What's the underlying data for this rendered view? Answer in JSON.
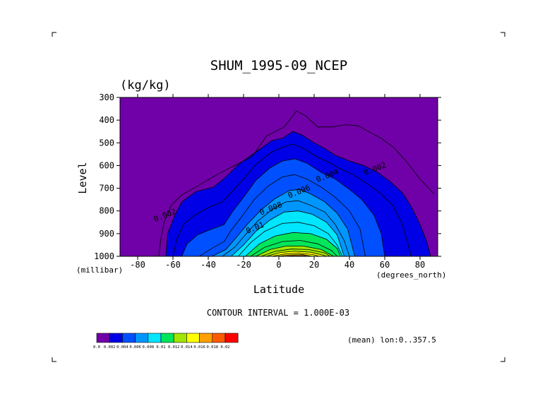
{
  "chart_data": {
    "type": "contour",
    "title": "SHUM_1995-09_NCEP",
    "units_label": "(kg/kg)",
    "xlabel": "Latitude",
    "ylabel": "Level",
    "x_units_label": "(degrees_north)",
    "y_units_label": "(millibar)",
    "xlim": [
      -90,
      90
    ],
    "ylim": [
      1000,
      300
    ],
    "x_ticks": [
      -80,
      -60,
      -40,
      -20,
      0,
      20,
      40,
      60,
      80
    ],
    "y_ticks": [
      300,
      400,
      500,
      600,
      700,
      800,
      900,
      1000
    ],
    "contour_interval_text": "CONTOUR INTERVAL = 1.000E-03",
    "annotation": "(mean) lon:0..357.5",
    "colorbar": {
      "colors": [
        "#7000a8",
        "#0000e6",
        "#0050ff",
        "#0096ff",
        "#00e6ff",
        "#00e65a",
        "#a0e600",
        "#ffff00",
        "#ffa000",
        "#ff5a00",
        "#ff0000"
      ],
      "labels": [
        "0.0",
        "0.002",
        "0.004",
        "0.006",
        "0.008",
        "0.01",
        "0.012",
        "0.014",
        "0.016",
        "0.018",
        "0.02"
      ]
    },
    "contour_labels": [
      {
        "text": "0.002",
        "lat": -64,
        "lev": 830
      },
      {
        "text": "0.002",
        "lat": 55,
        "lev": 625
      },
      {
        "text": "0.004",
        "lat": 28,
        "lev": 655
      },
      {
        "text": "0.006",
        "lat": 12,
        "lev": 725
      },
      {
        "text": "0.008",
        "lat": -4,
        "lev": 800
      },
      {
        "text": "0.01",
        "lat": -13,
        "lev": 885
      }
    ],
    "contours": [
      {
        "value": 0.001,
        "points": [
          [
            -68,
            1000
          ],
          [
            -67,
            930
          ],
          [
            -65,
            850
          ],
          [
            -61,
            775
          ],
          [
            -55,
            730
          ],
          [
            -45,
            685
          ],
          [
            -35,
            640
          ],
          [
            -25,
            600
          ],
          [
            -15,
            560
          ],
          [
            -7,
            470
          ],
          [
            3,
            430
          ],
          [
            10,
            360
          ],
          [
            15,
            380
          ],
          [
            22,
            430
          ],
          [
            30,
            430
          ],
          [
            38,
            420
          ],
          [
            45,
            425
          ],
          [
            52,
            455
          ],
          [
            58,
            480
          ],
          [
            65,
            520
          ],
          [
            72,
            580
          ],
          [
            80,
            660
          ],
          [
            88,
            725
          ]
        ]
      },
      {
        "value": 0.002,
        "points": [
          [
            -64,
            1000
          ],
          [
            -63,
            900
          ],
          [
            -59,
            820
          ],
          [
            -55,
            760
          ],
          [
            -47,
            715
          ],
          [
            -37,
            695
          ],
          [
            -30,
            650
          ],
          [
            -22,
            590
          ],
          [
            -12,
            535
          ],
          [
            -4,
            490
          ],
          [
            2,
            480
          ],
          [
            8,
            450
          ],
          [
            13,
            465
          ],
          [
            20,
            500
          ],
          [
            26,
            525
          ],
          [
            32,
            555
          ],
          [
            40,
            580
          ],
          [
            48,
            600
          ],
          [
            56,
            630
          ],
          [
            63,
            670
          ],
          [
            70,
            720
          ],
          [
            75,
            780
          ],
          [
            80,
            860
          ],
          [
            84,
            940
          ],
          [
            86,
            1000
          ]
        ]
      },
      {
        "value": 0.003,
        "points": [
          [
            -60,
            1000
          ],
          [
            -58,
            930
          ],
          [
            -54,
            860
          ],
          [
            -48,
            820
          ],
          [
            -40,
            785
          ],
          [
            -32,
            760
          ],
          [
            -26,
            710
          ],
          [
            -20,
            660
          ],
          [
            -13,
            595
          ],
          [
            -5,
            545
          ],
          [
            2,
            520
          ],
          [
            8,
            505
          ],
          [
            14,
            525
          ],
          [
            20,
            555
          ],
          [
            28,
            585
          ],
          [
            35,
            615
          ],
          [
            42,
            640
          ],
          [
            50,
            680
          ],
          [
            58,
            725
          ],
          [
            65,
            780
          ],
          [
            70,
            860
          ],
          [
            73,
            940
          ],
          [
            75,
            1000
          ]
        ]
      },
      {
        "value": 0.004,
        "points": [
          [
            -55,
            1000
          ],
          [
            -52,
            945
          ],
          [
            -46,
            905
          ],
          [
            -38,
            880
          ],
          [
            -31,
            860
          ],
          [
            -26,
            800
          ],
          [
            -20,
            740
          ],
          [
            -13,
            665
          ],
          [
            -5,
            610
          ],
          [
            2,
            580
          ],
          [
            9,
            570
          ],
          [
            16,
            590
          ],
          [
            24,
            630
          ],
          [
            32,
            660
          ],
          [
            40,
            705
          ],
          [
            47,
            750
          ],
          [
            54,
            820
          ],
          [
            58,
            900
          ],
          [
            60,
            1000
          ]
        ]
      },
      {
        "value": 0.005,
        "points": [
          [
            -45,
            1000
          ],
          [
            -38,
            965
          ],
          [
            -31,
            935
          ],
          [
            -27,
            885
          ],
          [
            -21,
            825
          ],
          [
            -14,
            750
          ],
          [
            -6,
            690
          ],
          [
            2,
            650
          ],
          [
            9,
            640
          ],
          [
            16,
            660
          ],
          [
            24,
            695
          ],
          [
            32,
            740
          ],
          [
            40,
            800
          ],
          [
            46,
            880
          ],
          [
            49,
            1000
          ]
        ]
      },
      {
        "value": 0.006,
        "points": [
          [
            -38,
            1000
          ],
          [
            -30,
            970
          ],
          [
            -25,
            925
          ],
          [
            -18,
            860
          ],
          [
            -10,
            795
          ],
          [
            -2,
            745
          ],
          [
            6,
            710
          ],
          [
            12,
            705
          ],
          [
            18,
            725
          ],
          [
            26,
            760
          ],
          [
            33,
            810
          ],
          [
            39,
            880
          ],
          [
            43,
            1000
          ]
        ]
      },
      {
        "value": 0.007,
        "points": [
          [
            -32,
            1000
          ],
          [
            -25,
            960
          ],
          [
            -19,
            905
          ],
          [
            -12,
            845
          ],
          [
            -4,
            795
          ],
          [
            4,
            760
          ],
          [
            11,
            755
          ],
          [
            18,
            775
          ],
          [
            26,
            805
          ],
          [
            32,
            860
          ],
          [
            37,
            930
          ],
          [
            40,
            1000
          ]
        ]
      },
      {
        "value": 0.008,
        "points": [
          [
            -27,
            1000
          ],
          [
            -20,
            950
          ],
          [
            -13,
            890
          ],
          [
            -5,
            840
          ],
          [
            3,
            805
          ],
          [
            11,
            800
          ],
          [
            19,
            815
          ],
          [
            27,
            850
          ],
          [
            33,
            905
          ],
          [
            37,
            1000
          ]
        ]
      },
      {
        "value": 0.009,
        "points": [
          [
            -23,
            1000
          ],
          [
            -16,
            940
          ],
          [
            -8,
            890
          ],
          [
            2,
            855
          ],
          [
            11,
            850
          ],
          [
            20,
            865
          ],
          [
            28,
            900
          ],
          [
            33,
            950
          ],
          [
            36,
            1000
          ]
        ]
      },
      {
        "value": 0.01,
        "points": [
          [
            -19,
            1000
          ],
          [
            -11,
            945
          ],
          [
            -2,
            910
          ],
          [
            8,
            895
          ],
          [
            18,
            900
          ],
          [
            27,
            925
          ],
          [
            33,
            965
          ],
          [
            35,
            1000
          ]
        ]
      },
      {
        "value": 0.011,
        "points": [
          [
            -16,
            1000
          ],
          [
            -8,
            960
          ],
          [
            2,
            935
          ],
          [
            12,
            930
          ],
          [
            22,
            945
          ],
          [
            30,
            975
          ],
          [
            33,
            1000
          ]
        ]
      },
      {
        "value": 0.012,
        "points": [
          [
            -13,
            1000
          ],
          [
            -5,
            970
          ],
          [
            4,
            955
          ],
          [
            14,
            955
          ],
          [
            24,
            970
          ],
          [
            31,
            1000
          ]
        ]
      },
      {
        "value": 0.013,
        "points": [
          [
            -10,
            1000
          ],
          [
            -2,
            978
          ],
          [
            7,
            968
          ],
          [
            17,
            970
          ],
          [
            26,
            985
          ],
          [
            29,
            1000
          ]
        ]
      },
      {
        "value": 0.014,
        "points": [
          [
            -7,
            1000
          ],
          [
            1,
            983
          ],
          [
            9,
            978
          ],
          [
            18,
            982
          ],
          [
            25,
            995
          ],
          [
            27,
            1000
          ]
        ]
      },
      {
        "value": 0.015,
        "points": [
          [
            -4,
            1000
          ],
          [
            3,
            990
          ],
          [
            11,
            986
          ],
          [
            19,
            992
          ],
          [
            23,
            1000
          ]
        ]
      },
      {
        "value": 0.016,
        "points": [
          [
            -1,
            1000
          ],
          [
            6,
            994
          ],
          [
            13,
            992
          ],
          [
            19,
            1000
          ]
        ]
      },
      {
        "value": 0.017,
        "points": [
          [
            3,
            1000
          ],
          [
            9,
            997
          ],
          [
            14,
            997
          ],
          [
            17,
            1000
          ]
        ]
      }
    ]
  }
}
